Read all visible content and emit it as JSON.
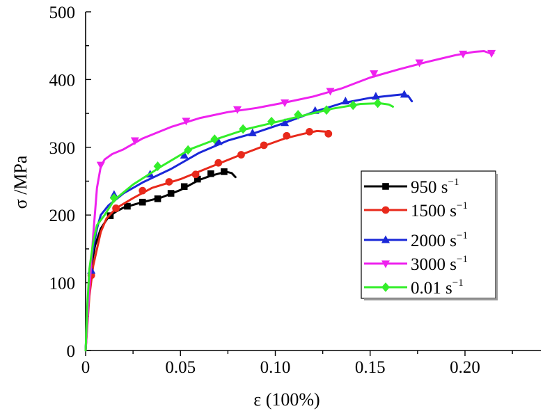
{
  "chart_data": {
    "type": "line",
    "xlabel": "ε (100%)",
    "ylabel": "σ /MPa",
    "xlim": [
      0,
      0.24
    ],
    "ylim": [
      0,
      500
    ],
    "xticks": [
      "0",
      "0.05",
      "0.10",
      "0.15",
      "0.20"
    ],
    "yticks": [
      "0",
      "100",
      "200",
      "300",
      "400",
      "500"
    ],
    "legend_position": "right",
    "series": [
      {
        "name": "950 s⁻¹",
        "legend_label": "950 s",
        "legend_exp": "−1",
        "color": "#000000",
        "marker": "square",
        "curve": [
          [
            0,
            0
          ],
          [
            0.001,
            50
          ],
          [
            0.002,
            100
          ],
          [
            0.003,
            125
          ],
          [
            0.005,
            155
          ],
          [
            0.008,
            180
          ],
          [
            0.012,
            197
          ],
          [
            0.016,
            205
          ],
          [
            0.02,
            211
          ],
          [
            0.03,
            219
          ],
          [
            0.04,
            226
          ],
          [
            0.05,
            237
          ],
          [
            0.06,
            252
          ],
          [
            0.066,
            258
          ],
          [
            0.07,
            261
          ],
          [
            0.074,
            264
          ],
          [
            0.077,
            262
          ],
          [
            0.079,
            256
          ]
        ],
        "markers": [
          [
            0.013,
            199
          ],
          [
            0.022,
            213
          ],
          [
            0.03,
            219
          ],
          [
            0.038,
            224
          ],
          [
            0.045,
            232
          ],
          [
            0.052,
            242
          ],
          [
            0.059,
            253
          ],
          [
            0.066,
            261
          ],
          [
            0.073,
            264
          ]
        ]
      },
      {
        "name": "1500 s⁻¹",
        "legend_label": "1500 s",
        "legend_exp": "−1",
        "color": "#e8291b",
        "marker": "circle",
        "curve": [
          [
            0,
            0
          ],
          [
            0.002,
            80
          ],
          [
            0.004,
            125
          ],
          [
            0.006,
            150
          ],
          [
            0.008,
            175
          ],
          [
            0.011,
            195
          ],
          [
            0.016,
            210
          ],
          [
            0.025,
            225
          ],
          [
            0.035,
            240
          ],
          [
            0.05,
            253
          ],
          [
            0.065,
            270
          ],
          [
            0.08,
            287
          ],
          [
            0.095,
            303
          ],
          [
            0.105,
            313
          ],
          [
            0.115,
            320
          ],
          [
            0.122,
            324
          ],
          [
            0.127,
            323
          ],
          [
            0.129,
            320
          ]
        ],
        "markers": [
          [
            0.003,
            111
          ],
          [
            0.016,
            210
          ],
          [
            0.03,
            236
          ],
          [
            0.044,
            249
          ],
          [
            0.058,
            260
          ],
          [
            0.07,
            277
          ],
          [
            0.082,
            289
          ],
          [
            0.094,
            303
          ],
          [
            0.106,
            317
          ],
          [
            0.118,
            323
          ],
          [
            0.128,
            320
          ]
        ]
      },
      {
        "name": "2000 s⁻¹",
        "legend_label": "2000 s",
        "legend_exp": "−1",
        "color": "#1a28d8",
        "marker": "triangle-up",
        "curve": [
          [
            0,
            0
          ],
          [
            0.001,
            60
          ],
          [
            0.002,
            115
          ],
          [
            0.004,
            150
          ],
          [
            0.006,
            180
          ],
          [
            0.008,
            200
          ],
          [
            0.012,
            214
          ],
          [
            0.02,
            232
          ],
          [
            0.03,
            248
          ],
          [
            0.045,
            268
          ],
          [
            0.06,
            292
          ],
          [
            0.075,
            310
          ],
          [
            0.09,
            322
          ],
          [
            0.105,
            336
          ],
          [
            0.12,
            352
          ],
          [
            0.135,
            365
          ],
          [
            0.15,
            373
          ],
          [
            0.16,
            376
          ],
          [
            0.167,
            378
          ],
          [
            0.17,
            376
          ],
          [
            0.172,
            368
          ]
        ],
        "markers": [
          [
            0.003,
            118
          ],
          [
            0.015,
            230
          ],
          [
            0.034,
            260
          ],
          [
            0.052,
            288
          ],
          [
            0.07,
            308
          ],
          [
            0.088,
            321
          ],
          [
            0.105,
            336
          ],
          [
            0.121,
            354
          ],
          [
            0.137,
            368
          ],
          [
            0.153,
            375
          ],
          [
            0.168,
            378
          ]
        ]
      },
      {
        "name": "3000 s⁻¹",
        "legend_label": "3000 s",
        "legend_exp": "−1",
        "color": "#ee22ee",
        "marker": "triangle-down",
        "curve": [
          [
            0,
            0
          ],
          [
            0.002,
            90
          ],
          [
            0.004,
            170
          ],
          [
            0.006,
            240
          ],
          [
            0.008,
            272
          ],
          [
            0.01,
            282
          ],
          [
            0.014,
            290
          ],
          [
            0.02,
            297
          ],
          [
            0.03,
            313
          ],
          [
            0.045,
            330
          ],
          [
            0.06,
            343
          ],
          [
            0.075,
            352
          ],
          [
            0.09,
            358
          ],
          [
            0.105,
            366
          ],
          [
            0.12,
            375
          ],
          [
            0.135,
            387
          ],
          [
            0.15,
            403
          ],
          [
            0.165,
            415
          ],
          [
            0.18,
            426
          ],
          [
            0.195,
            436
          ],
          [
            0.205,
            441
          ],
          [
            0.21,
            442
          ],
          [
            0.213,
            439
          ],
          [
            0.215,
            439
          ]
        ],
        "markers": [
          [
            0.008,
            274
          ],
          [
            0.026,
            310
          ],
          [
            0.053,
            339
          ],
          [
            0.08,
            356
          ],
          [
            0.105,
            366
          ],
          [
            0.129,
            383
          ],
          [
            0.152,
            409
          ],
          [
            0.176,
            425
          ],
          [
            0.199,
            438
          ],
          [
            0.214,
            439
          ]
        ]
      },
      {
        "name": "0.01 s⁻¹",
        "legend_label": "0.01 s",
        "legend_exp": "−1",
        "color": "#33ee2a",
        "marker": "diamond",
        "curve": [
          [
            0,
            0
          ],
          [
            0.001,
            70
          ],
          [
            0.002,
            120
          ],
          [
            0.004,
            160
          ],
          [
            0.006,
            185
          ],
          [
            0.01,
            200
          ],
          [
            0.015,
            222
          ],
          [
            0.025,
            245
          ],
          [
            0.04,
            272
          ],
          [
            0.055,
            297
          ],
          [
            0.07,
            313
          ],
          [
            0.085,
            327
          ],
          [
            0.1,
            337
          ],
          [
            0.115,
            347
          ],
          [
            0.13,
            357
          ],
          [
            0.145,
            364
          ],
          [
            0.155,
            365
          ],
          [
            0.16,
            363
          ],
          [
            0.162,
            360
          ]
        ],
        "markers": [
          [
            0.015,
            225
          ],
          [
            0.038,
            272
          ],
          [
            0.054,
            296
          ],
          [
            0.068,
            312
          ],
          [
            0.083,
            327
          ],
          [
            0.098,
            338
          ],
          [
            0.112,
            348
          ],
          [
            0.127,
            355
          ],
          [
            0.141,
            362
          ],
          [
            0.154,
            365
          ]
        ]
      }
    ]
  }
}
